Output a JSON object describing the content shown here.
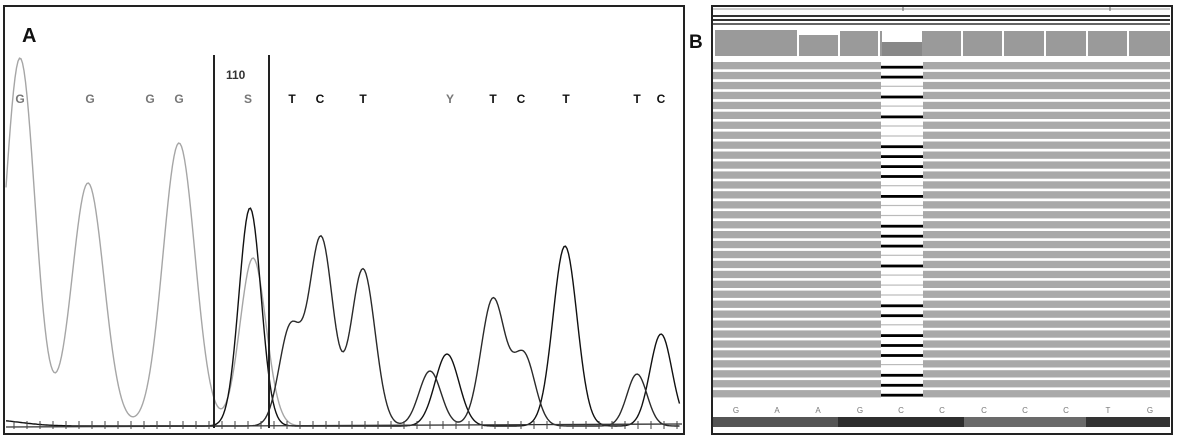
{
  "figure": {
    "panel_a": {
      "label": "A",
      "position_marker": "110",
      "bases": [
        "G",
        "G",
        "G",
        "G",
        "S",
        "T",
        "C",
        "T",
        "Y",
        "T",
        "C",
        "T",
        "T",
        "C"
      ]
    },
    "panel_b": {
      "label": "B",
      "reference_bases": [
        "G",
        "A",
        "A",
        "G",
        "C",
        "C",
        "C",
        "C",
        "C",
        "T",
        "G"
      ],
      "read_rows": 34,
      "variant_column_index": 4
    },
    "colors": {
      "trace_dark": "#111111",
      "trace_mid": "#6e6e6e",
      "trace_light": "#a6a6a6",
      "read_fill": "#a9a9a9",
      "coverage_fill": "#9a9a9a",
      "frame": "#222222"
    }
  }
}
